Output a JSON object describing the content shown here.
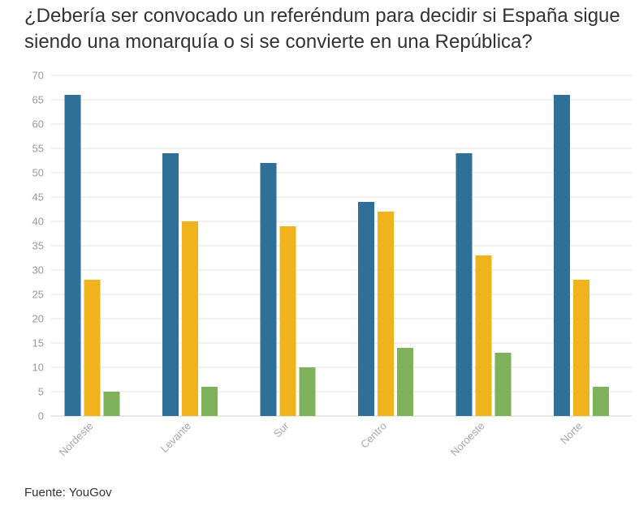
{
  "title": "¿Debería ser convocado un referéndum para decidir si España sigue siendo una monarquía o si se convierte en una República?",
  "source": "Fuente: YouGov",
  "chart_data": {
    "type": "bar",
    "categories": [
      "Nordeste",
      "Levante",
      "Sur",
      "Centro",
      "Noroeste",
      "Norte"
    ],
    "series": [
      {
        "values": [
          66,
          54,
          52,
          44,
          54,
          66
        ],
        "color": "#2f7099"
      },
      {
        "values": [
          28,
          40,
          39,
          42,
          33,
          28
        ],
        "color": "#f0b31c"
      },
      {
        "values": [
          5,
          6,
          10,
          14,
          13,
          6
        ],
        "color": "#7db25a"
      }
    ],
    "yticks": [
      0,
      5,
      10,
      15,
      20,
      25,
      30,
      35,
      40,
      45,
      50,
      55,
      60,
      65,
      70
    ],
    "ylim": [
      0,
      70
    ],
    "grid": true,
    "legend": "none"
  }
}
